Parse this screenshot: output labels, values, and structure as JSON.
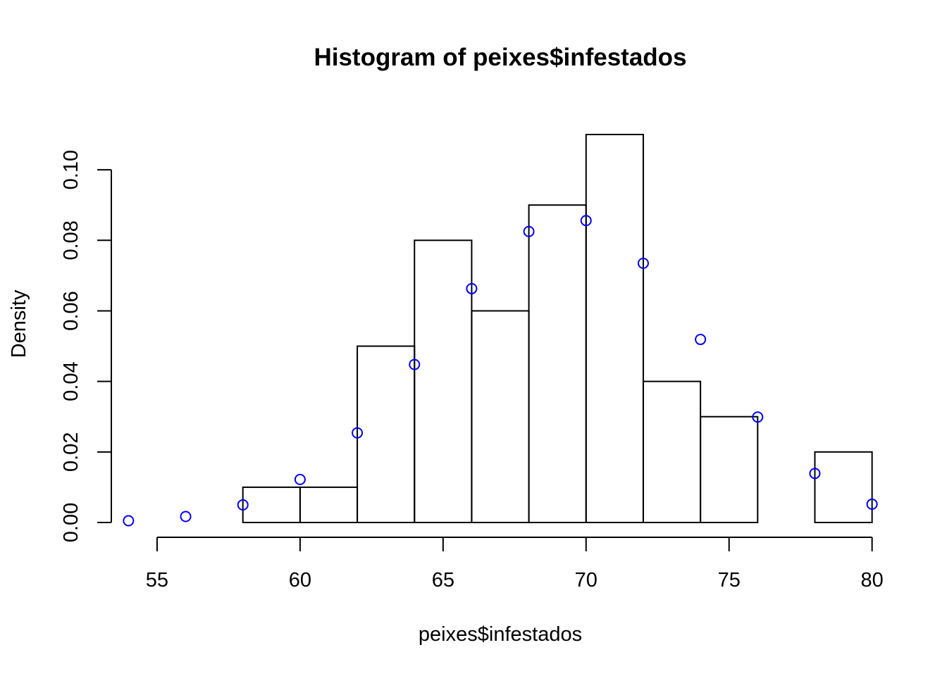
{
  "chart_data": {
    "type": "bar",
    "title": "Histogram of peixes$infestados",
    "xlabel": "peixes$infestados",
    "ylabel": "Density",
    "xlim": [
      53.4,
      80.6
    ],
    "ylim": [
      0,
      0.1132
    ],
    "x_ticks": [
      55,
      60,
      65,
      70,
      75,
      80
    ],
    "x_tick_labels": [
      "55",
      "60",
      "65",
      "70",
      "75",
      "80"
    ],
    "y_ticks": [
      0,
      0.02,
      0.04,
      0.06,
      0.08,
      0.1
    ],
    "y_tick_labels": [
      "0.00",
      "0.02",
      "0.04",
      "0.06",
      "0.08",
      "0.10"
    ],
    "grid": false,
    "bins": [
      {
        "start": 54,
        "end": 56,
        "density": 0.0
      },
      {
        "start": 56,
        "end": 58,
        "density": 0.0
      },
      {
        "start": 58,
        "end": 60,
        "density": 0.01
      },
      {
        "start": 60,
        "end": 62,
        "density": 0.01
      },
      {
        "start": 62,
        "end": 64,
        "density": 0.05
      },
      {
        "start": 64,
        "end": 66,
        "density": 0.08
      },
      {
        "start": 66,
        "end": 68,
        "density": 0.06
      },
      {
        "start": 68,
        "end": 70,
        "density": 0.09
      },
      {
        "start": 70,
        "end": 72,
        "density": 0.11
      },
      {
        "start": 72,
        "end": 74,
        "density": 0.04
      },
      {
        "start": 74,
        "end": 76,
        "density": 0.03
      },
      {
        "start": 76,
        "end": 78,
        "density": 0.0
      },
      {
        "start": 78,
        "end": 80,
        "density": 0.02
      }
    ],
    "points": {
      "color": "#0000ff",
      "x": [
        54,
        56,
        58,
        60,
        62,
        64,
        66,
        68,
        70,
        72,
        74,
        76,
        78,
        80
      ],
      "y": [
        0.0005,
        0.0017,
        0.005,
        0.0122,
        0.0254,
        0.0448,
        0.0663,
        0.0825,
        0.0856,
        0.0735,
        0.0519,
        0.0299,
        0.0139,
        0.0052
      ]
    }
  }
}
